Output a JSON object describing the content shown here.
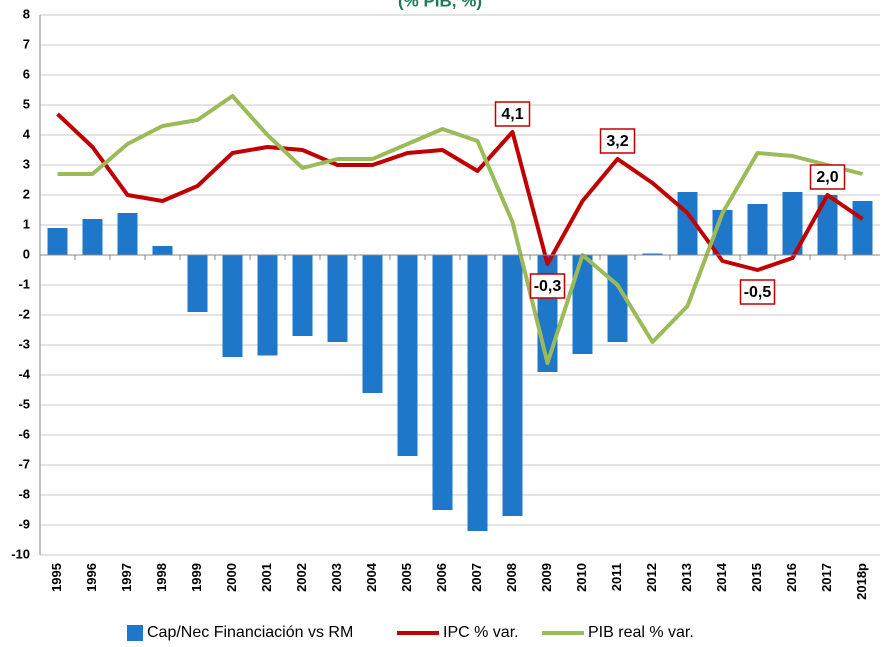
{
  "chart_data": {
    "type": "bar-line",
    "title": "(% PIB, %)",
    "categories": [
      "1995",
      "1996",
      "1997",
      "1998",
      "1999",
      "2000",
      "2001",
      "2002",
      "2003",
      "2004",
      "2005",
      "2006",
      "2007",
      "2008",
      "2009",
      "2010",
      "2011",
      "2012",
      "2013",
      "2014",
      "2015",
      "2016",
      "2017",
      "2018p"
    ],
    "ylim": [
      -10,
      8
    ],
    "yticks": [
      -10,
      -9,
      -8,
      -7,
      -6,
      -5,
      -4,
      -3,
      -2,
      -1,
      0,
      1,
      2,
      3,
      4,
      5,
      6,
      7,
      8
    ],
    "grid": true,
    "legend": "bottom",
    "series": [
      {
        "name": "Cap/Nec Financiación vs RM",
        "type": "bar",
        "color": "#1f77c9",
        "values": [
          0.9,
          1.2,
          1.4,
          0.3,
          -1.9,
          -3.4,
          -3.35,
          -2.7,
          -2.9,
          -4.6,
          -6.7,
          -8.5,
          -9.2,
          -8.7,
          -3.9,
          -3.3,
          -2.9,
          0.05,
          2.1,
          1.5,
          1.7,
          2.1,
          2.0,
          1.8
        ]
      },
      {
        "name": "IPC % var.",
        "type": "line",
        "color": "#c00000",
        "values": [
          4.7,
          3.6,
          2.0,
          1.8,
          2.3,
          3.4,
          3.6,
          3.5,
          3.0,
          3.0,
          3.4,
          3.5,
          2.8,
          4.1,
          -0.3,
          1.8,
          3.2,
          2.4,
          1.4,
          -0.2,
          -0.5,
          -0.1,
          2.0,
          1.2
        ],
        "value_labels": [
          null,
          null,
          null,
          null,
          null,
          null,
          null,
          null,
          null,
          null,
          null,
          null,
          null,
          "4,1",
          "-0,3",
          null,
          "3,2",
          null,
          null,
          null,
          "-0,5",
          null,
          "2,0",
          null
        ]
      },
      {
        "name": "PIB real % var.",
        "type": "line",
        "color": "#9bbb59",
        "values": [
          2.7,
          2.7,
          3.7,
          4.3,
          4.5,
          5.3,
          4.0,
          2.9,
          3.2,
          3.2,
          3.7,
          4.2,
          3.8,
          1.1,
          -3.6,
          0.0,
          -1.0,
          -2.9,
          -1.7,
          1.4,
          3.4,
          3.3,
          3.0,
          2.7
        ]
      }
    ]
  }
}
